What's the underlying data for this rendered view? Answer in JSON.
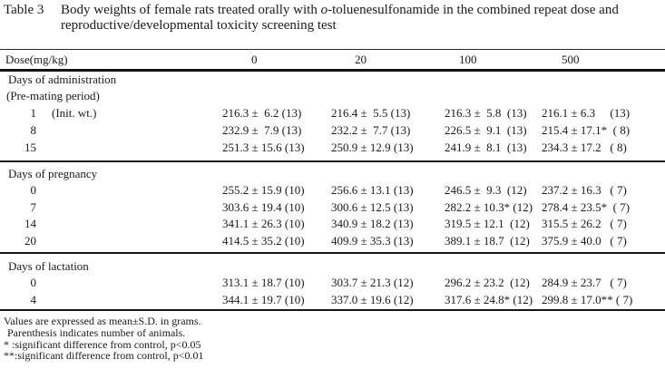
{
  "title": {
    "label": "Table 3",
    "line1_pre": "Body weights of female rats treated orally with ",
    "line1_italic": "o",
    "line1_post": "-toluenesulfonamide in the combined repeat dose and",
    "line2": "reproductive/developmental toxicity screening test"
  },
  "header": {
    "label": "Dose(mg/kg)",
    "doses": [
      "0",
      "20",
      "100",
      "500"
    ]
  },
  "sections": [
    {
      "heading": "Days of administration",
      "subheading": "(Pre-mating period)",
      "rows": [
        {
          "day": "1",
          "note": "(Init. wt.)",
          "cells": [
            "216.3 ±  6.2 (13)",
            "216.4 ±  5.5 (13)",
            "216.3 ±  5.8  (13)",
            "216.1 ± 6.3     (13)"
          ]
        },
        {
          "day": "8",
          "note": "",
          "cells": [
            "232.9 ±  7.9 (13)",
            "232.2 ±  7.7 (13)",
            "226.5 ±  9.1  (13)",
            "215.4 ± 17.1*  ( 8)"
          ]
        },
        {
          "day": "15",
          "note": "",
          "cells": [
            "251.3 ± 15.6 (13)",
            "250.9 ± 12.9 (13)",
            "241.9 ±  8.1  (13)",
            "234.3 ± 17.2   ( 8)"
          ]
        }
      ]
    },
    {
      "heading": "Days of pregnancy",
      "rows": [
        {
          "day": "0",
          "note": "",
          "cells": [
            "255.2 ± 15.9 (10)",
            "256.6 ± 13.1 (13)",
            "246.5 ±  9.3  (12)",
            "237.2 ± 16.3   ( 7)"
          ]
        },
        {
          "day": "7",
          "note": "",
          "cells": [
            "303.6 ± 19.4 (10)",
            "300.6 ± 12.5 (13)",
            "282.2 ± 10.3* (12)",
            "278.4 ± 23.5*  ( 7)"
          ]
        },
        {
          "day": "14",
          "note": "",
          "cells": [
            "341.1 ± 26.3 (10)",
            "340.9 ± 18.2 (13)",
            "319.5 ± 12.1  (12)",
            "315.5 ± 26.2   ( 7)"
          ]
        },
        {
          "day": "20",
          "note": "",
          "cells": [
            "414.5 ± 35.2 (10)",
            "409.9 ± 35.3 (13)",
            "389.1 ± 18.7  (12)",
            "375.9 ± 40.0   ( 7)"
          ]
        }
      ]
    },
    {
      "heading": "Days of lactation",
      "rows": [
        {
          "day": "0",
          "note": "",
          "cells": [
            "313.1 ± 18.7 (10)",
            "303.7 ± 21.3 (12)",
            "296.2 ± 23.2  (12)",
            "284.9 ± 23.7   ( 7)"
          ]
        },
        {
          "day": "4",
          "note": "",
          "cells": [
            "344.1 ± 19.7 (10)",
            "337.0 ± 19.6 (12)",
            "317.6 ± 24.8* (12)",
            "299.8 ± 17.0** ( 7)"
          ]
        }
      ]
    }
  ],
  "footnotes": [
    "Values are expressed as mean±S.D. in grams.",
    "Parenthesis indicates number of animals.",
    "* :significant difference from control, p<0.05",
    "**:significant difference from control, p<0.01"
  ]
}
